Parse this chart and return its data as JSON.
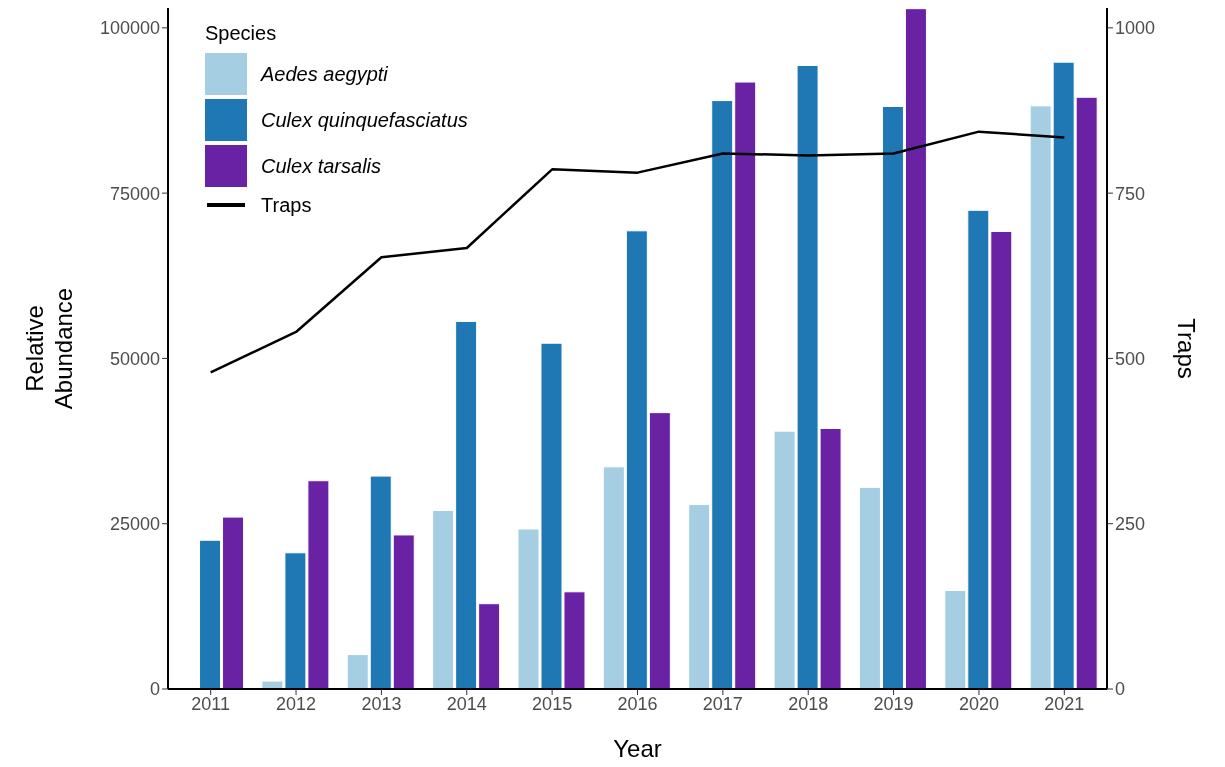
{
  "chart_data": {
    "type": "bar",
    "xlabel": "Year",
    "ylabel": "Relative Abundance",
    "y2label": "Traps",
    "legend_title": "Species",
    "legend": "top left",
    "grid": false,
    "categories": [
      "2011",
      "2012",
      "2013",
      "2014",
      "2015",
      "2016",
      "2017",
      "2018",
      "2019",
      "2020",
      "2021"
    ],
    "series": [
      {
        "name": "Aedes aegypti",
        "color": "#a6cee3",
        "values": [
          0,
          1200,
          5200,
          27000,
          24200,
          33600,
          27900,
          39000,
          30500,
          14900,
          88200
        ]
      },
      {
        "name": "Culex quinquefasciatus",
        "color": "#1f78b4",
        "values": [
          22500,
          20600,
          32200,
          55600,
          52300,
          69300,
          89000,
          94300,
          88100,
          72400,
          94800
        ]
      },
      {
        "name": "Culex tarsalis",
        "color": "#6a22a5",
        "values": [
          26000,
          31500,
          23300,
          12900,
          14700,
          41800,
          91800,
          39400,
          102900,
          69200,
          89500
        ]
      },
      {
        "name": "Traps",
        "type": "line",
        "axis": "y2",
        "color": "#000000",
        "values": [
          479,
          540,
          653,
          667,
          786,
          781,
          810,
          807,
          810,
          843,
          834
        ]
      }
    ],
    "ylim": [
      0,
      103000
    ],
    "yticks": [
      0,
      25000,
      50000,
      75000,
      100000
    ],
    "y2lim": [
      0,
      1030
    ],
    "y2ticks": [
      0,
      250,
      500,
      750,
      1000
    ]
  }
}
